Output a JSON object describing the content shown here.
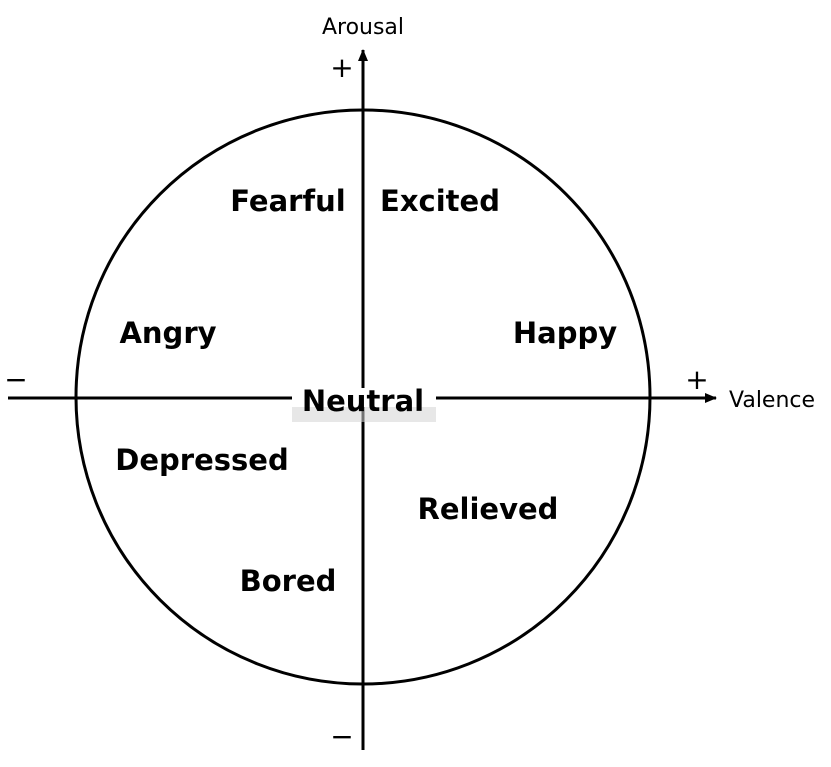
{
  "diagram": {
    "axes": {
      "horizontal": {
        "label": "Valence",
        "positive": "+",
        "negative": "−"
      },
      "vertical": {
        "label": "Arousal",
        "positive": "+",
        "negative": "−"
      }
    },
    "center_label": "Neutral",
    "emotions": {
      "fearful": "Fearful",
      "excited": "Excited",
      "angry": "Angry",
      "happy": "Happy",
      "depressed": "Depressed",
      "relieved": "Relieved",
      "bored": "Bored"
    },
    "colors": {
      "stroke": "#000000",
      "neutral_band": "#d4d4d4",
      "background": "#ffffff"
    }
  }
}
